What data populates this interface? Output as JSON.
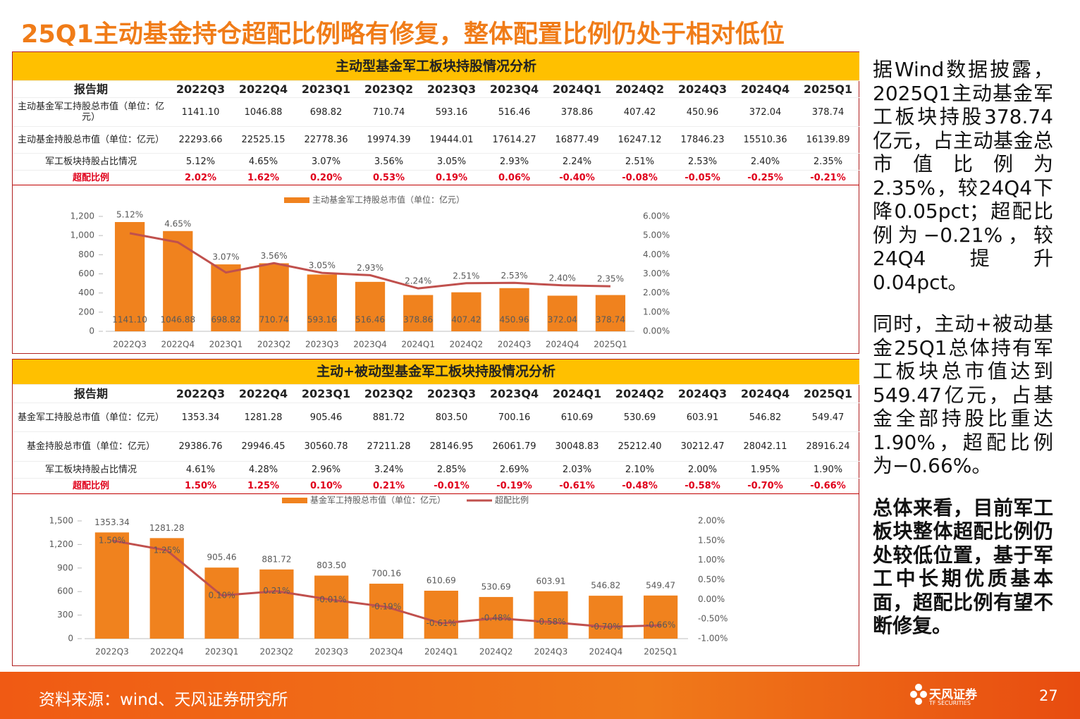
{
  "title": "25Q1主动基金持仓超配比例略有修复，整体配置比例仍处于相对低位",
  "tables": [
    {
      "title": "主动型基金军工板块持股情况分析",
      "header": [
        "报告期",
        "2022Q3",
        "2022Q4",
        "2023Q1",
        "2023Q2",
        "2023Q3",
        "2023Q4",
        "2024Q1",
        "2024Q2",
        "2024Q3",
        "2024Q4",
        "2025Q1"
      ],
      "rows": [
        [
          "主动基金军工持股总市值（单位：亿元）",
          "1141.10",
          "1046.88",
          "698.82",
          "710.74",
          "593.16",
          "516.46",
          "378.86",
          "407.42",
          "450.96",
          "372.04",
          "378.74"
        ],
        [
          "主动基金持股总市值（单位：亿元）",
          "22293.66",
          "22525.15",
          "22778.36",
          "19974.39",
          "19444.01",
          "17614.27",
          "16877.49",
          "16247.12",
          "17846.23",
          "15510.36",
          "16139.89"
        ],
        [
          "军工板块持股占比情况",
          "5.12%",
          "4.65%",
          "3.07%",
          "3.56%",
          "3.05%",
          "2.93%",
          "2.24%",
          "2.51%",
          "2.53%",
          "2.40%",
          "2.35%"
        ],
        [
          "超配比例",
          "2.02%",
          "1.62%",
          "0.20%",
          "0.53%",
          "0.19%",
          "0.06%",
          "-0.40%",
          "-0.08%",
          "-0.05%",
          "-0.25%",
          "-0.21%"
        ]
      ]
    },
    {
      "title": "主动+被动型基金军工板块持股情况分析",
      "header": [
        "报告期",
        "2022Q3",
        "2022Q4",
        "2023Q1",
        "2023Q2",
        "2023Q3",
        "2023Q4",
        "2024Q1",
        "2024Q2",
        "2024Q3",
        "2024Q4",
        "2025Q1"
      ],
      "rows": [
        [
          "基金军工持股总市值（单位：亿元）",
          "1353.34",
          "1281.28",
          "905.46",
          "881.72",
          "803.50",
          "700.16",
          "610.69",
          "530.69",
          "603.91",
          "546.82",
          "549.47"
        ],
        [
          "基金持股总市值（单位：亿元）",
          "29386.76",
          "29946.45",
          "30560.78",
          "27211.28",
          "28146.95",
          "26061.79",
          "30048.83",
          "25212.40",
          "30212.47",
          "28042.11",
          "28916.24"
        ],
        [
          "军工板块持股占比情况",
          "4.61%",
          "4.28%",
          "2.96%",
          "3.24%",
          "2.85%",
          "2.69%",
          "2.03%",
          "2.10%",
          "2.00%",
          "1.95%",
          "1.90%"
        ],
        [
          "超配比例",
          "1.50%",
          "1.25%",
          "0.10%",
          "0.21%",
          "-0.01%",
          "-0.19%",
          "-0.61%",
          "-0.48%",
          "-0.58%",
          "-0.70%",
          "-0.66%"
        ]
      ]
    }
  ],
  "chart_data": [
    {
      "type": "bar",
      "categories": [
        "2022Q3",
        "2022Q4",
        "2023Q1",
        "2023Q2",
        "2023Q3",
        "2023Q4",
        "2024Q1",
        "2024Q2",
        "2024Q3",
        "2024Q4",
        "2025Q1"
      ],
      "series": [
        {
          "name": "主动基金军工持股总市值（单位：亿元）",
          "type": "bar",
          "color": "#f0821e",
          "values": [
            1141.1,
            1046.88,
            698.82,
            710.74,
            593.16,
            516.46,
            378.86,
            407.42,
            450.96,
            372.04,
            378.74
          ],
          "value_labels": [
            "1141.10",
            "1046.88",
            "698.82",
            "710.74",
            "593.16",
            "516.46",
            "378.86",
            "407.42",
            "450.96",
            "372.04",
            "378.74"
          ]
        },
        {
          "type": "line",
          "axis": "y2",
          "color": "#c0504d",
          "values": [
            5.12,
            4.65,
            3.07,
            3.56,
            3.05,
            2.93,
            2.24,
            2.51,
            2.53,
            2.4,
            2.35
          ],
          "value_labels": [
            "5.12%",
            "4.65%",
            "3.07%",
            "3.56%",
            "3.05%",
            "2.93%",
            "2.24%",
            "2.51%",
            "2.53%",
            "2.40%",
            "2.35%"
          ]
        }
      ],
      "ylim": [
        0,
        1200
      ],
      "yticks": [
        0,
        200,
        400,
        600,
        800,
        {
          "value": 1000,
          "label": "1,000"
        },
        {
          "value": 1200,
          "label": "1,200"
        }
      ],
      "y2lim": [
        0,
        6
      ],
      "y2ticks": [
        {
          "value": 0,
          "label": "0.00%"
        },
        {
          "value": 1,
          "label": "1.00%"
        },
        {
          "value": 2,
          "label": "2.00%"
        },
        {
          "value": 3,
          "label": "3.00%"
        },
        {
          "value": 4,
          "label": "4.00%"
        },
        {
          "value": 5,
          "label": "5.00%"
        },
        {
          "value": 6,
          "label": "6.00%"
        }
      ]
    },
    {
      "type": "bar",
      "categories": [
        "2022Q3",
        "2022Q4",
        "2023Q1",
        "2023Q2",
        "2023Q3",
        "2023Q4",
        "2024Q1",
        "2024Q2",
        "2024Q3",
        "2024Q4",
        "2025Q1"
      ],
      "series": [
        {
          "name": "基金军工持股总市值（单位：亿元）",
          "type": "bar",
          "color": "#f0821e",
          "values": [
            1353.34,
            1281.28,
            905.46,
            881.72,
            803.5,
            700.16,
            610.69,
            530.69,
            603.91,
            546.82,
            549.47
          ],
          "value_labels": [
            "1353.34",
            "1281.28",
            "905.46",
            "881.72",
            "803.50",
            "700.16",
            "610.69",
            "530.69",
            "603.91",
            "546.82",
            "549.47"
          ]
        },
        {
          "name": "超配比例",
          "type": "line",
          "axis": "y2",
          "color": "#c0504d",
          "values": [
            1.5,
            1.25,
            0.1,
            0.21,
            -0.01,
            -0.19,
            -0.61,
            -0.48,
            -0.58,
            -0.7,
            -0.66
          ],
          "value_labels": [
            "1.50%",
            "1.25%",
            "0.10%",
            "0.21%",
            "-0.01%",
            "-0.19%",
            "-0.61%",
            "-0.48%",
            "-0.58%",
            "-0.70%",
            "-0.66%"
          ]
        }
      ],
      "ylim": [
        0,
        1500
      ],
      "yticks": [
        0,
        300,
        600,
        900,
        {
          "value": 1200,
          "label": "1,200"
        },
        {
          "value": 1500,
          "label": "1,500"
        }
      ],
      "y2lim": [
        -1,
        2
      ],
      "y2ticks": [
        {
          "value": -1,
          "label": "-1.00%"
        },
        {
          "value": -0.5,
          "label": "-0.50%"
        },
        {
          "value": 0,
          "label": "0.00%"
        },
        {
          "value": 0.5,
          "label": "0.50%"
        },
        {
          "value": 1,
          "label": "1.00%"
        },
        {
          "value": 1.5,
          "label": "1.50%"
        },
        {
          "value": 2,
          "label": "2.00%"
        }
      ]
    }
  ],
  "sidebar": {
    "paragraphs": [
      "据Wind数据披露，2025Q1主动基金军工板块持股378.74亿元，占主动基金总市值比例为2.35%，较24Q4下降0.05pct；超配比例为−0.21%，较24Q4提升0.04pct。",
      "同时，主动+被动基金25Q1总体持有军工板块总市值达到549.47亿元，占基金全部持股比重达1.90%，超配比例为−0.66%。",
      "总体来看，目前军工板块整体超配比例仍处较低位置，基于军工中长期优质基本面，超配比例有望不断修复。"
    ]
  },
  "footer": {
    "source": "资料来源：wind、天风证券研究所",
    "logo": "天风证券",
    "logo_en": "TF SECURITIES",
    "page": "27"
  }
}
